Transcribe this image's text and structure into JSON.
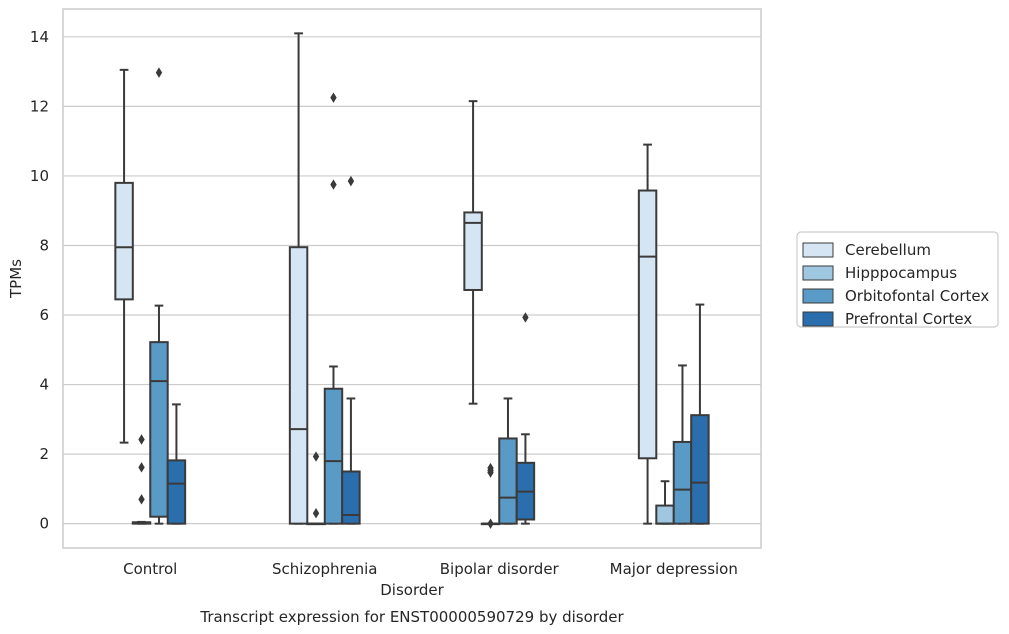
{
  "chart_data": {
    "type": "box",
    "title": "Transcript expression for ENST00000590729 by disorder",
    "xlabel": "Disorder",
    "ylabel": "TPMs",
    "ylim": [
      -0.7,
      14.8
    ],
    "yticks": [
      0,
      2,
      4,
      6,
      8,
      10,
      12,
      14
    ],
    "grid": "horizontal",
    "legend_position": "right",
    "categories": [
      "Control",
      "Schizophrenia",
      "Bipolar disorder",
      "Major depression"
    ],
    "series": [
      {
        "name": "Cerebellum",
        "color": "#d6e5f3",
        "boxes": [
          {
            "whislo": 2.33,
            "q1": 6.45,
            "med": 7.95,
            "q3": 9.8,
            "whishi": 13.05,
            "fliers": []
          },
          {
            "whislo": 0.0,
            "q1": 0.0,
            "med": 2.72,
            "q3": 7.95,
            "whishi": 14.1,
            "fliers": []
          },
          {
            "whislo": 3.45,
            "q1": 6.72,
            "med": 8.65,
            "q3": 8.95,
            "whishi": 12.15,
            "fliers": []
          },
          {
            "whislo": 0.0,
            "q1": 1.88,
            "med": 7.68,
            "q3": 9.58,
            "whishi": 10.9,
            "fliers": []
          }
        ]
      },
      {
        "name": "Hipppocampus",
        "color": "#9fc8e0",
        "boxes": [
          {
            "whislo": 0.0,
            "q1": 0.0,
            "med": 0.02,
            "q3": 0.04,
            "whishi": 0.05,
            "fliers": [
              0.7,
              1.62,
              2.42
            ]
          },
          {
            "whislo": 0.0,
            "q1": 0.0,
            "med": 0.0,
            "q3": 0.0,
            "whishi": 0.0,
            "fliers": [
              0.3,
              1.93
            ]
          },
          {
            "whislo": 0.0,
            "q1": 0.0,
            "med": 0.0,
            "q3": 0.0,
            "whishi": 0.0,
            "fliers": [
              0.0,
              1.47,
              1.53,
              1.6
            ]
          },
          {
            "whislo": 0.0,
            "q1": 0.0,
            "med": 0.0,
            "q3": 0.52,
            "whishi": 1.22,
            "fliers": []
          }
        ]
      },
      {
        "name": "Orbitofontal Cortex",
        "color": "#5a9ac6",
        "boxes": [
          {
            "whislo": 0.0,
            "q1": 0.2,
            "med": 4.1,
            "q3": 5.22,
            "whishi": 6.27,
            "fliers": [
              12.97
            ]
          },
          {
            "whislo": 0.0,
            "q1": 0.0,
            "med": 1.8,
            "q3": 3.88,
            "whishi": 4.52,
            "fliers": [
              9.75,
              12.25
            ]
          },
          {
            "whislo": 0.0,
            "q1": 0.0,
            "med": 0.75,
            "q3": 2.45,
            "whishi": 3.6,
            "fliers": []
          },
          {
            "whislo": 0.0,
            "q1": 0.0,
            "med": 0.98,
            "q3": 2.35,
            "whishi": 4.55,
            "fliers": []
          }
        ]
      },
      {
        "name": "Prefrontal Cortex",
        "color": "#2b6ead",
        "boxes": [
          {
            "whislo": 0.0,
            "q1": 0.0,
            "med": 1.15,
            "q3": 1.82,
            "whishi": 3.43,
            "fliers": []
          },
          {
            "whislo": 0.0,
            "q1": 0.0,
            "med": 0.25,
            "q3": 1.5,
            "whishi": 3.6,
            "fliers": [
              9.85
            ]
          },
          {
            "whislo": 0.0,
            "q1": 0.12,
            "med": 0.92,
            "q3": 1.75,
            "whishi": 2.57,
            "fliers": [
              5.93
            ]
          },
          {
            "whislo": 0.0,
            "q1": 0.0,
            "med": 1.18,
            "q3": 3.12,
            "whishi": 6.3,
            "fliers": []
          }
        ]
      }
    ]
  }
}
